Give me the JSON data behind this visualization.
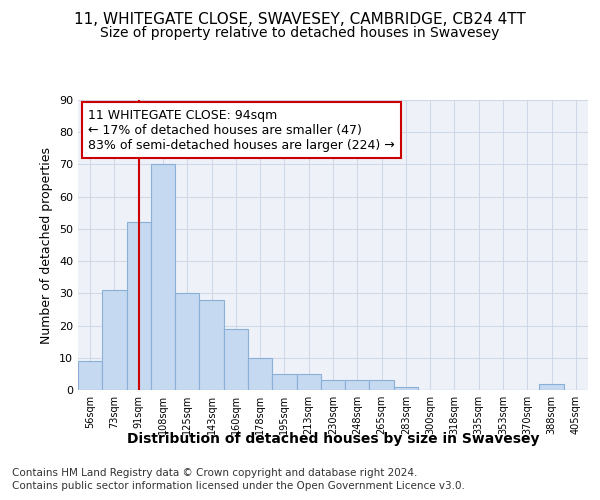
{
  "title": "11, WHITEGATE CLOSE, SWAVESEY, CAMBRIDGE, CB24 4TT",
  "subtitle": "Size of property relative to detached houses in Swavesey",
  "xlabel": "Distribution of detached houses by size in Swavesey",
  "ylabel": "Number of detached properties",
  "bar_values": [
    9,
    31,
    52,
    70,
    30,
    28,
    19,
    10,
    5,
    5,
    3,
    3,
    3,
    1,
    0,
    0,
    0,
    0,
    0,
    2,
    0
  ],
  "bar_labels": [
    "56sqm",
    "73sqm",
    "91sqm",
    "108sqm",
    "125sqm",
    "143sqm",
    "160sqm",
    "178sqm",
    "195sqm",
    "213sqm",
    "230sqm",
    "248sqm",
    "265sqm",
    "283sqm",
    "300sqm",
    "318sqm",
    "335sqm",
    "353sqm",
    "370sqm",
    "388sqm",
    "405sqm"
  ],
  "bar_color": "#c5d9f0",
  "bar_edge_color": "#8ab0d8",
  "vline_x": 2.0,
  "vline_color": "#cc0000",
  "annotation_line1": "11 WHITEGATE CLOSE: 94sqm",
  "annotation_line2": "← 17% of detached houses are smaller (47)",
  "annotation_line3": "83% of semi-detached houses are larger (224) →",
  "annotation_box_color": "#ffffff",
  "annotation_box_edge": "#cc0000",
  "ylim": [
    0,
    90
  ],
  "yticks": [
    0,
    10,
    20,
    30,
    40,
    50,
    60,
    70,
    80,
    90
  ],
  "grid_color": "#d0d8e8",
  "footnote1": "Contains HM Land Registry data © Crown copyright and database right 2024.",
  "footnote2": "Contains public sector information licensed under the Open Government Licence v3.0.",
  "title_fontsize": 11,
  "subtitle_fontsize": 10,
  "xlabel_fontsize": 10,
  "ylabel_fontsize": 9,
  "annotation_fontsize": 9,
  "footnote_fontsize": 7.5
}
